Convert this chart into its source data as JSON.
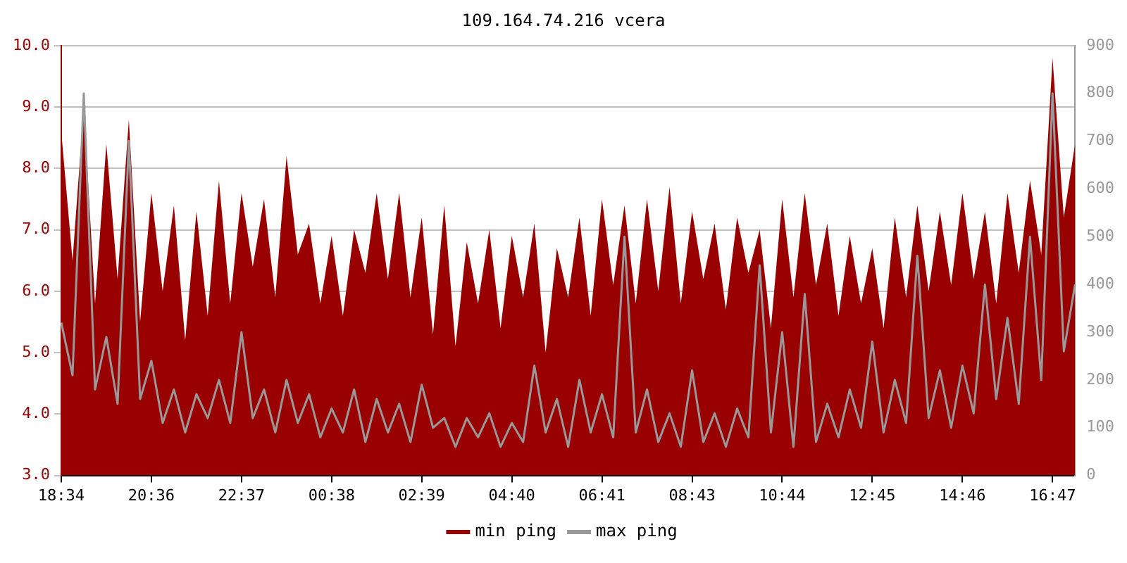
{
  "chart_data": {
    "type": "line",
    "title": "109.164.74.216 vcera",
    "categories": [
      "18:34",
      null,
      null,
      null,
      null,
      null,
      null,
      null,
      "20:36",
      null,
      null,
      null,
      null,
      null,
      null,
      null,
      "22:37",
      null,
      null,
      null,
      null,
      null,
      null,
      null,
      "00:38",
      null,
      null,
      null,
      null,
      null,
      null,
      null,
      "02:39",
      null,
      null,
      null,
      null,
      null,
      null,
      null,
      "04:40",
      null,
      null,
      null,
      null,
      null,
      null,
      null,
      "06:41",
      null,
      null,
      null,
      null,
      null,
      null,
      null,
      "08:43",
      null,
      null,
      null,
      null,
      null,
      null,
      null,
      "10:44",
      null,
      null,
      null,
      null,
      null,
      null,
      null,
      "12:45",
      null,
      null,
      null,
      null,
      null,
      null,
      null,
      "14:46",
      null,
      null,
      null,
      null,
      null,
      null,
      null,
      "16:47",
      null,
      null
    ],
    "series": [
      {
        "name": "min ping",
        "type": "area",
        "axis": "y",
        "color": "#990000",
        "values": [
          8.6,
          6.5,
          9.0,
          5.8,
          8.4,
          6.2,
          8.8,
          5.5,
          7.6,
          6.0,
          7.4,
          5.2,
          7.3,
          5.6,
          7.8,
          5.8,
          7.6,
          6.4,
          7.5,
          5.9,
          8.2,
          6.6,
          7.1,
          5.8,
          6.9,
          5.6,
          7.0,
          6.3,
          7.6,
          6.2,
          7.6,
          5.9,
          7.2,
          5.3,
          7.4,
          5.1,
          6.8,
          5.8,
          7.0,
          5.4,
          6.9,
          5.9,
          7.1,
          5.0,
          6.7,
          5.9,
          7.2,
          5.6,
          7.5,
          6.1,
          7.4,
          5.8,
          7.5,
          6.0,
          7.7,
          5.8,
          7.3,
          6.2,
          7.1,
          5.7,
          7.2,
          6.3,
          7.0,
          5.4,
          7.5,
          5.9,
          7.6,
          6.1,
          7.1,
          5.6,
          6.9,
          5.8,
          6.7,
          5.4,
          7.2,
          5.9,
          7.4,
          6.0,
          7.3,
          6.1,
          7.6,
          6.2,
          7.3,
          5.8,
          7.6,
          6.3,
          7.8,
          6.6,
          9.8,
          7.2,
          8.4
        ]
      },
      {
        "name": "max ping",
        "type": "line",
        "axis": "y2",
        "color": "#999999",
        "values": [
          320,
          210,
          800,
          180,
          290,
          150,
          700,
          160,
          240,
          110,
          180,
          90,
          170,
          120,
          200,
          110,
          300,
          120,
          180,
          90,
          200,
          110,
          170,
          80,
          140,
          90,
          180,
          70,
          160,
          90,
          150,
          70,
          190,
          100,
          120,
          60,
          120,
          80,
          130,
          60,
          110,
          70,
          230,
          90,
          160,
          60,
          200,
          90,
          170,
          80,
          500,
          90,
          180,
          70,
          130,
          60,
          220,
          70,
          130,
          60,
          140,
          80,
          440,
          90,
          300,
          60,
          380,
          70,
          150,
          80,
          180,
          100,
          280,
          90,
          200,
          110,
          460,
          120,
          220,
          100,
          230,
          130,
          400,
          160,
          330,
          150,
          500,
          200,
          800,
          260,
          400
        ]
      }
    ],
    "ylim": [
      3,
      10
    ],
    "yticks": [
      {
        "value": 3,
        "label": "3.0"
      },
      {
        "value": 4,
        "label": "4.0"
      },
      {
        "value": 5,
        "label": "5.0"
      },
      {
        "value": 6,
        "label": "6.0"
      },
      {
        "value": 7,
        "label": "7.0"
      },
      {
        "value": 8,
        "label": "8.0"
      },
      {
        "value": 9,
        "label": "9.0"
      },
      {
        "value": 10,
        "label": "10.0"
      }
    ],
    "y2lim": [
      0,
      900
    ],
    "y2ticks": [
      0,
      100,
      200,
      300,
      400,
      500,
      600,
      700,
      800,
      900
    ],
    "grid": "y",
    "legend": "bottom"
  }
}
